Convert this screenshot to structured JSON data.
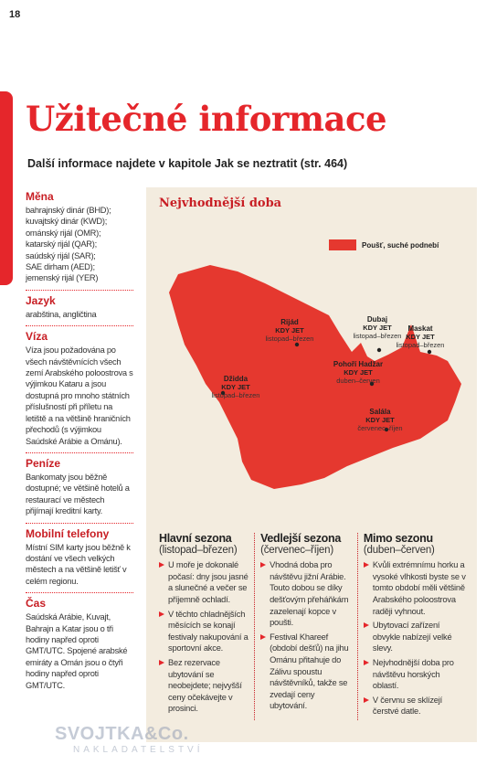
{
  "page_number": "18",
  "header": {
    "title": "Užitečné informace",
    "subtitle": "Další informace najdete v kapitole Jak se neztratit (str. 464)"
  },
  "sidebar": [
    {
      "heading": "Měna",
      "lines": [
        "bahrajnský dinár (BHD);",
        "kuvajtský dinár (KWD);",
        "ománský rijál (OMR);",
        "katarský rijál (QAR);",
        "saúdský rijál (SAR);",
        "SAE dirham (AED);",
        "jemenský rijál (YER)"
      ]
    },
    {
      "heading": "Jazyk",
      "text": "arabština, angličtina"
    },
    {
      "heading": "Víza",
      "text": "Víza jsou požadována po všech návštěvnících všech zemí Arabského poloostrova s výjimkou Kataru a jsou dostupná pro mnoho státních příslušností při příletu na letiště a na většině hraničních přechodů (s výjimkou Saúdské Arábie a Ománu)."
    },
    {
      "heading": "Peníze",
      "text": "Bankomaty jsou běžně dostupné; ve většině hotelů a restaurací ve městech přijímají kreditní karty."
    },
    {
      "heading": "Mobilní telefony",
      "text": "Místní SIM karty jsou běžně k dostání ve všech velkých městech a na většině letišť v celém regionu."
    },
    {
      "heading": "Čas",
      "text": "Saúdská Arábie, Kuvajt, Bahrajn a Katar jsou o tři hodiny napřed oproti GMT/UTC. Spojené arabské emiráty a Omán jsou o čtyři hodiny napřed oproti GMT/UTC."
    }
  ],
  "map": {
    "title": "Nejvhodnější doba",
    "legend": "Poušť, suché podnebí",
    "places": [
      {
        "name": "Rijád",
        "label": "KDY JET",
        "season": "listopad–březen"
      },
      {
        "name": "Dubaj",
        "label": "KDY JET",
        "season": "listopad–březen"
      },
      {
        "name": "Maskat",
        "label": "KDY JET",
        "season": "listopad–březen"
      },
      {
        "name": "Džidda",
        "label": "KDY JET",
        "season": "listopad–březen"
      },
      {
        "name": "Pohoří Hadžar",
        "label": "KDY JET",
        "season": "duben–červen"
      },
      {
        "name": "Salála",
        "label": "KDY JET",
        "season": "červenec–říjen"
      }
    ]
  },
  "seasons": [
    {
      "heading": "Hlavní sezona",
      "period": "(listopad–březen)",
      "bullets": [
        "U moře je dokonalé počasí: dny jsou jasné a slunečné a večer se příjemně ochladí.",
        "V těchto chladnějších měsících se konají festivaly nakupování a sportovní akce.",
        "Bez rezervace ubytování se neobejdete; nejvyšší ceny očekávejte v prosinci."
      ]
    },
    {
      "heading": "Vedlejší sezona",
      "period": "(červenec–říjen)",
      "bullets": [
        "Vhodná doba pro návštěvu jižní Arábie. Touto dobou se díky dešťovým přeháňkám zazelenají kopce v poušti.",
        "Festival Khareef (období dešťů) na jihu Ománu přitahuje do Zálivu spoustu návštěvníků, takže se zvedají ceny ubytování."
      ]
    },
    {
      "heading": "Mimo sezonu",
      "period": "(duben–červen)",
      "bullets": [
        "Kvůli extrémnímu horku a vysoké vlhkosti byste se v tomto období měli většině Arabského poloostrova raději vyhnout.",
        "Ubytovací zařízení obvykle nabízejí velké slevy.",
        "Nejvhodnější doba pro návštěvu horských oblastí.",
        "V červnu se sklízejí čerstvé datle."
      ]
    }
  ],
  "watermark": {
    "brand": "SVOJTKA&Co.",
    "sub": "NAKLADATELSTVÍ"
  }
}
